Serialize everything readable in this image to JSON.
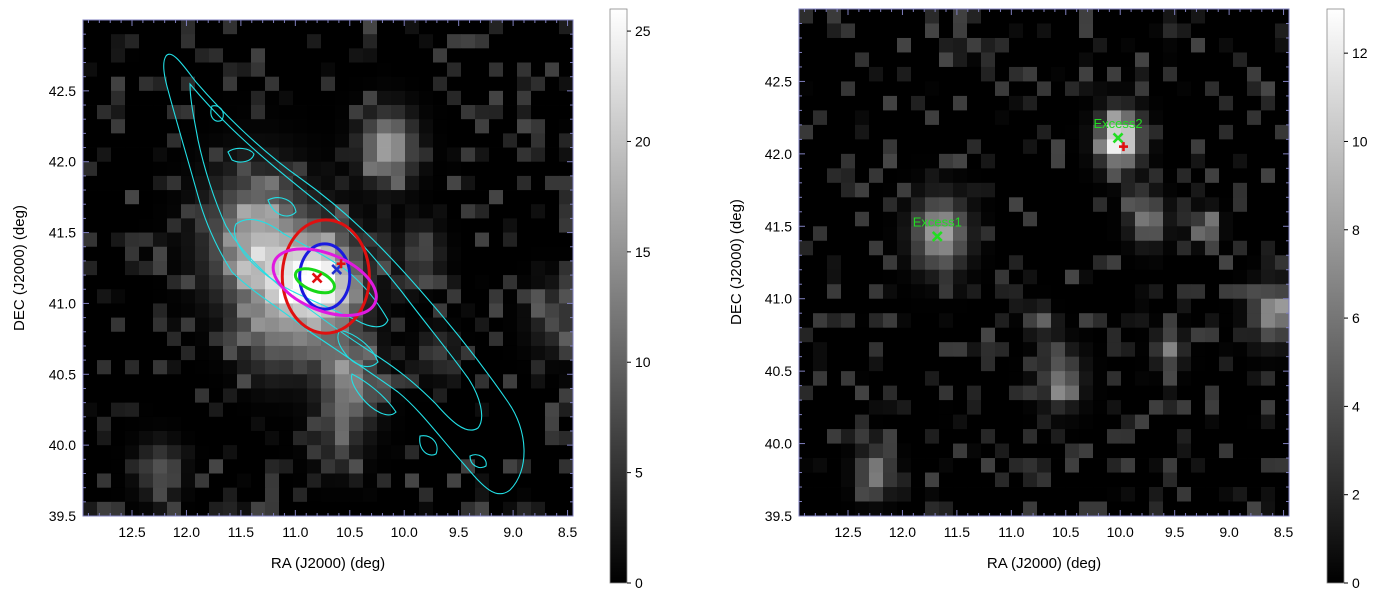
{
  "chart_data": [
    {
      "type": "heatmap",
      "xlabel": "RA (J2000) (deg)",
      "ylabel": "DEC (J2000) (deg)",
      "xlim": [
        12.95,
        8.45
      ],
      "ylim": [
        39.5,
        43.0
      ],
      "x_ticks": [
        "12.5",
        "12.0",
        "11.5",
        "11.0",
        "10.5",
        "10.0",
        "9.5",
        "9.0",
        "8.5"
      ],
      "y_ticks": [
        "39.5",
        "40.0",
        "40.5",
        "41.0",
        "41.5",
        "42.0",
        "42.5"
      ],
      "colorbar": {
        "min": 0,
        "max": 26,
        "ticks": [
          "0",
          "5",
          "10",
          "15",
          "20",
          "25"
        ],
        "colormap": "gray"
      },
      "contour_color": "#22e0e6",
      "blobs": [
        {
          "ra": 10.75,
          "dec": 41.15,
          "sigma": 0.22,
          "amp": 24
        },
        {
          "ra": 11.35,
          "dec": 41.45,
          "sigma": 0.28,
          "amp": 15
        },
        {
          "ra": 11.1,
          "dec": 41.1,
          "sigma": 0.25,
          "amp": 10
        },
        {
          "ra": 10.55,
          "dec": 40.55,
          "sigma": 0.18,
          "amp": 9
        },
        {
          "ra": 10.45,
          "dec": 40.35,
          "sigma": 0.14,
          "amp": 7
        },
        {
          "ra": 10.15,
          "dec": 42.1,
          "sigma": 0.15,
          "amp": 16
        },
        {
          "ra": 9.85,
          "dec": 41.35,
          "sigma": 0.12,
          "amp": 6
        },
        {
          "ra": 11.2,
          "dec": 40.75,
          "sigma": 0.18,
          "amp": 6
        },
        {
          "ra": 12.25,
          "dec": 39.82,
          "sigma": 0.12,
          "amp": 7
        },
        {
          "ra": 10.6,
          "dec": 40.05,
          "sigma": 0.15,
          "amp": 4
        },
        {
          "ra": 9.7,
          "dec": 40.65,
          "sigma": 0.1,
          "amp": 5
        },
        {
          "ra": 8.6,
          "dec": 40.9,
          "sigma": 0.15,
          "amp": 5
        }
      ],
      "markers": [
        {
          "shape": "x",
          "ra": 10.8,
          "dec": 41.18,
          "color": "#e01010"
        },
        {
          "shape": "x",
          "ra": 10.62,
          "dec": 41.24,
          "color": "#2030d0"
        },
        {
          "shape": "plus",
          "ra": 10.58,
          "dec": 41.28,
          "color": "#e01010"
        }
      ],
      "circles": [
        {
          "ra": 10.72,
          "dec": 41.19,
          "radius_deg": 0.4,
          "color": "#e01010"
        },
        {
          "ra": 10.73,
          "dec": 41.19,
          "radius_deg": 0.23,
          "color": "#1a1adf"
        }
      ],
      "ellipses": [
        {
          "ra": 10.73,
          "dec": 41.15,
          "semi_major_deg": 0.5,
          "semi_minor_deg": 0.2,
          "angle_deg": -22,
          "color": "#e019e0"
        },
        {
          "ra": 10.82,
          "dec": 41.16,
          "semi_major_deg": 0.19,
          "semi_minor_deg": 0.07,
          "angle_deg": -22,
          "color": "#19d819"
        }
      ]
    },
    {
      "type": "heatmap",
      "xlabel": "RA (J2000) (deg)",
      "ylabel": "DEC (J2000) (deg)",
      "xlim": [
        12.95,
        8.45
      ],
      "ylim": [
        39.5,
        43.0
      ],
      "x_ticks": [
        "12.5",
        "12.0",
        "11.5",
        "11.0",
        "10.5",
        "10.0",
        "9.5",
        "9.0",
        "8.5"
      ],
      "y_ticks": [
        "39.5",
        "40.0",
        "40.5",
        "41.0",
        "41.5",
        "42.0",
        "42.5"
      ],
      "colorbar": {
        "min": 0,
        "max": 13,
        "ticks": [
          "0",
          "2",
          "4",
          "6",
          "8",
          "10",
          "12"
        ],
        "colormap": "gray"
      },
      "blobs": [
        {
          "ra": 10.0,
          "dec": 42.1,
          "sigma": 0.12,
          "amp": 12.5
        },
        {
          "ra": 11.65,
          "dec": 41.45,
          "sigma": 0.15,
          "amp": 8
        },
        {
          "ra": 9.75,
          "dec": 41.55,
          "sigma": 0.1,
          "amp": 6
        },
        {
          "ra": 8.6,
          "dec": 40.9,
          "sigma": 0.12,
          "amp": 7
        },
        {
          "ra": 10.55,
          "dec": 40.45,
          "sigma": 0.12,
          "amp": 5
        },
        {
          "ra": 9.55,
          "dec": 40.65,
          "sigma": 0.08,
          "amp": 6
        },
        {
          "ra": 12.25,
          "dec": 39.8,
          "sigma": 0.1,
          "amp": 6
        },
        {
          "ra": 10.75,
          "dec": 40.85,
          "sigma": 0.06,
          "amp": 6
        },
        {
          "ra": 9.2,
          "dec": 41.5,
          "sigma": 0.07,
          "amp": 6
        }
      ],
      "markers": [
        {
          "shape": "x",
          "ra": 11.68,
          "dec": 41.43,
          "color": "#22dd22",
          "label": "Excess1"
        },
        {
          "shape": "x",
          "ra": 10.02,
          "dec": 42.11,
          "color": "#22dd22",
          "label": "Excess2"
        },
        {
          "shape": "plus",
          "ra": 9.97,
          "dec": 42.05,
          "color": "#e01010"
        }
      ]
    }
  ]
}
